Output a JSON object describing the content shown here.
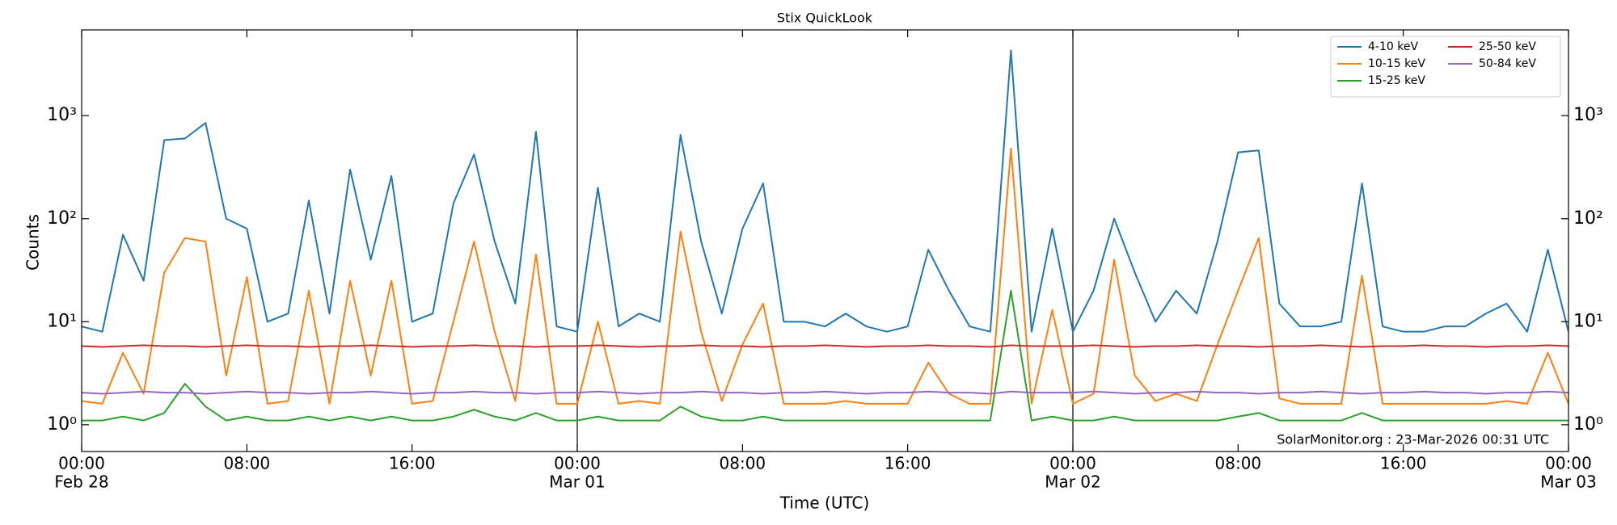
{
  "chart_data": {
    "type": "line",
    "title": "Stix QuickLook",
    "x_label": "Time (UTC)",
    "y_label": "Counts",
    "annotation": "SolarMonitor.org : 23-Mar-2026 00:31 UTC",
    "log_y": true,
    "legend": "upper right",
    "x": [
      0,
      1,
      2,
      3,
      4,
      5,
      6,
      7,
      8,
      9,
      10,
      11,
      12,
      13,
      14,
      15,
      16,
      17,
      18,
      19,
      20,
      21,
      22,
      23,
      24,
      25,
      26,
      27,
      28,
      29,
      30,
      31,
      32,
      33,
      34,
      35,
      36,
      37,
      38,
      39,
      40,
      41,
      42,
      43,
      44,
      45,
      46,
      47,
      48,
      49,
      50,
      51,
      52,
      53,
      54,
      55,
      56,
      57,
      58,
      59,
      60,
      61,
      62,
      63,
      64,
      65,
      66,
      67,
      68,
      69,
      70,
      71,
      72
    ],
    "xlim": [
      0,
      72
    ],
    "xticks": [
      {
        "value": 0,
        "label": "00:00",
        "date": "Feb 28"
      },
      {
        "value": 8,
        "label": "08:00"
      },
      {
        "value": 16,
        "label": "16:00"
      },
      {
        "value": 24,
        "label": "00:00",
        "date": "Mar 01"
      },
      {
        "value": 32,
        "label": "08:00"
      },
      {
        "value": 40,
        "label": "16:00"
      },
      {
        "value": 48,
        "label": "00:00",
        "date": "Mar 02"
      },
      {
        "value": 56,
        "label": "08:00"
      },
      {
        "value": 64,
        "label": "16:00"
      },
      {
        "value": 72,
        "label": "00:00",
        "date": "Mar 03"
      }
    ],
    "day_lines": [
      24,
      48
    ],
    "ylim": [
      0.55,
      6800
    ],
    "yticks": [
      {
        "value": 1,
        "label": "10⁰"
      },
      {
        "value": 10,
        "label": "10¹"
      },
      {
        "value": 100,
        "label": "10²"
      },
      {
        "value": 1000,
        "label": "10³"
      }
    ],
    "series": [
      {
        "name": "4-10 keV",
        "color": "#1f77b4",
        "values": [
          9,
          8,
          70,
          25,
          580,
          600,
          850,
          100,
          80,
          10,
          12,
          150,
          12,
          300,
          40,
          260,
          10,
          12,
          140,
          420,
          60,
          15,
          700,
          9,
          8,
          200,
          9,
          12,
          10,
          650,
          60,
          12,
          80,
          220,
          10,
          10,
          9,
          12,
          9,
          8,
          9,
          50,
          20,
          9,
          8,
          4300,
          8,
          80,
          8,
          20,
          100,
          30,
          10,
          20,
          12,
          60,
          440,
          460,
          15,
          9,
          9,
          10,
          220,
          9,
          8,
          8,
          9,
          9,
          12,
          15,
          8,
          50,
          8
        ]
      },
      {
        "name": "10-15 keV",
        "color": "#ff7f0e",
        "values": [
          1.7,
          1.6,
          5,
          2,
          30,
          65,
          60,
          3,
          27,
          1.6,
          1.7,
          20,
          1.6,
          25,
          3,
          25,
          1.6,
          1.7,
          10,
          60,
          8,
          1.7,
          45,
          1.6,
          1.6,
          10,
          1.6,
          1.7,
          1.6,
          75,
          8,
          1.7,
          6,
          15,
          1.6,
          1.6,
          1.6,
          1.7,
          1.6,
          1.6,
          1.6,
          4,
          2,
          1.6,
          1.6,
          480,
          1.6,
          13,
          1.6,
          2,
          40,
          3,
          1.7,
          2,
          1.7,
          6,
          20,
          65,
          1.8,
          1.6,
          1.6,
          1.6,
          28,
          1.6,
          1.6,
          1.6,
          1.6,
          1.6,
          1.6,
          1.7,
          1.6,
          5,
          1.6
        ]
      },
      {
        "name": "15-25 keV",
        "color": "#2ca02c",
        "values": [
          1.1,
          1.1,
          1.2,
          1.1,
          1.3,
          2.5,
          1.5,
          1.1,
          1.2,
          1.1,
          1.1,
          1.2,
          1.1,
          1.2,
          1.1,
          1.2,
          1.1,
          1.1,
          1.2,
          1.4,
          1.2,
          1.1,
          1.3,
          1.1,
          1.1,
          1.2,
          1.1,
          1.1,
          1.1,
          1.5,
          1.2,
          1.1,
          1.1,
          1.2,
          1.1,
          1.1,
          1.1,
          1.1,
          1.1,
          1.1,
          1.1,
          1.1,
          1.1,
          1.1,
          1.1,
          20,
          1.1,
          1.2,
          1.1,
          1.1,
          1.2,
          1.1,
          1.1,
          1.1,
          1.1,
          1.1,
          1.2,
          1.3,
          1.1,
          1.1,
          1.1,
          1.1,
          1.3,
          1.1,
          1.1,
          1.1,
          1.1,
          1.1,
          1.1,
          1.1,
          1.1,
          1.1,
          1.1
        ]
      },
      {
        "name": "25-50 keV",
        "color": "#d62728",
        "values": [
          5.8,
          5.7,
          5.8,
          5.9,
          5.8,
          5.8,
          5.7,
          5.8,
          5.9,
          5.8,
          5.8,
          5.7,
          5.8,
          5.8,
          5.9,
          5.8,
          5.7,
          5.8,
          5.8,
          5.9,
          5.8,
          5.8,
          5.7,
          5.8,
          5.8,
          5.9,
          5.8,
          5.7,
          5.8,
          5.8,
          5.9,
          5.8,
          5.8,
          5.7,
          5.8,
          5.8,
          5.9,
          5.8,
          5.7,
          5.8,
          5.8,
          5.9,
          5.8,
          5.8,
          5.7,
          5.9,
          5.8,
          5.8,
          5.8,
          5.9,
          5.8,
          5.7,
          5.8,
          5.8,
          5.9,
          5.8,
          5.8,
          5.7,
          5.8,
          5.8,
          5.9,
          5.8,
          5.7,
          5.8,
          5.8,
          5.9,
          5.8,
          5.8,
          5.7,
          5.8,
          5.8,
          5.9,
          5.8
        ]
      },
      {
        "name": "50-84 keV",
        "color": "#9467bd",
        "values": [
          2.05,
          2.0,
          2.05,
          2.1,
          2.05,
          2.05,
          2.0,
          2.05,
          2.1,
          2.05,
          2.05,
          2.0,
          2.05,
          2.05,
          2.1,
          2.05,
          2.0,
          2.05,
          2.05,
          2.1,
          2.05,
          2.05,
          2.0,
          2.05,
          2.05,
          2.1,
          2.05,
          2.0,
          2.05,
          2.05,
          2.1,
          2.05,
          2.05,
          2.0,
          2.05,
          2.05,
          2.1,
          2.05,
          2.0,
          2.05,
          2.05,
          2.1,
          2.05,
          2.05,
          2.0,
          2.1,
          2.05,
          2.05,
          2.05,
          2.1,
          2.05,
          2.0,
          2.05,
          2.05,
          2.1,
          2.05,
          2.05,
          2.0,
          2.05,
          2.05,
          2.1,
          2.05,
          2.0,
          2.05,
          2.05,
          2.1,
          2.05,
          2.05,
          2.0,
          2.05,
          2.05,
          2.1,
          2.05
        ]
      }
    ]
  }
}
